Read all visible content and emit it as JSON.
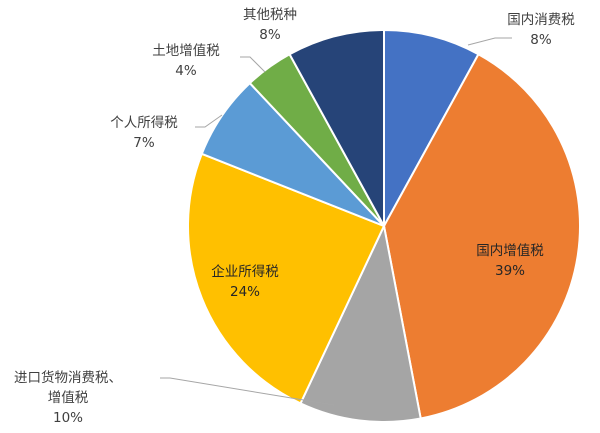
{
  "chart_data": {
    "type": "pie",
    "title": "",
    "legend": "none",
    "slices": [
      {
        "name": "国内消费税",
        "label_lines": [
          "国内消费税"
        ],
        "value": 8,
        "value_label": "8%",
        "color": "#4472C4"
      },
      {
        "name": "国内增值税",
        "label_lines": [
          "国内增值税"
        ],
        "value": 39,
        "value_label": "39%",
        "color": "#ED7D31"
      },
      {
        "name": "进口货物消费税、增值税",
        "label_lines": [
          "进口货物消费税、",
          "增值税"
        ],
        "value": 10,
        "value_label": "10%",
        "color": "#A5A5A5"
      },
      {
        "name": "企业所得税",
        "label_lines": [
          "企业所得税"
        ],
        "value": 24,
        "value_label": "24%",
        "color": "#FFC000"
      },
      {
        "name": "个人所得税",
        "label_lines": [
          "个人所得税"
        ],
        "value": 7,
        "value_label": "7%",
        "color": "#5B9BD5"
      },
      {
        "name": "土地增值税",
        "label_lines": [
          "土地增值税"
        ],
        "value": 4,
        "value_label": "4%",
        "color": "#70AD47"
      },
      {
        "name": "其他税种",
        "label_lines": [
          "其他税种"
        ],
        "value": 8,
        "value_label": "8%",
        "color": "#264478"
      }
    ]
  }
}
